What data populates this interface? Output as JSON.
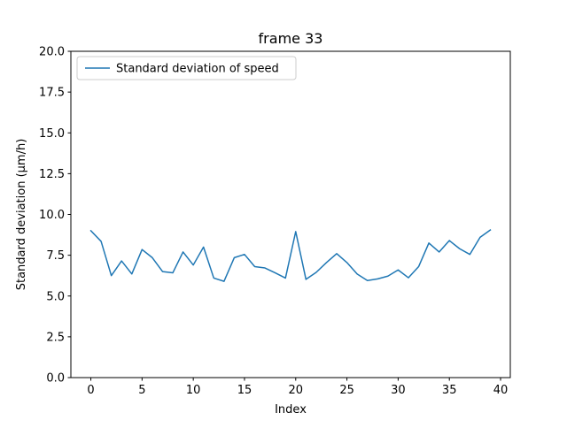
{
  "chart_data": {
    "type": "line",
    "title": "frame 33",
    "xlabel": "Index",
    "ylabel": "Standard deviation (μm/h)",
    "xlim": [
      -1.95,
      40.95
    ],
    "ylim": [
      0,
      20
    ],
    "xticks": [
      0,
      5,
      10,
      15,
      20,
      25,
      30,
      35,
      40
    ],
    "xtick_labels": [
      "0",
      "5",
      "10",
      "15",
      "20",
      "25",
      "30",
      "35",
      "40"
    ],
    "yticks": [
      0,
      2.5,
      5,
      7.5,
      10,
      12.5,
      15,
      17.5,
      20
    ],
    "ytick_labels": [
      "0.0",
      "2.5",
      "5.0",
      "7.5",
      "10.0",
      "12.5",
      "15.0",
      "17.5",
      "20.0"
    ],
    "grid": false,
    "legend_position": "upper left",
    "series": [
      {
        "name": "Standard deviation of speed",
        "color": "#1f77b4",
        "x": [
          0,
          1,
          2,
          3,
          4,
          5,
          6,
          7,
          8,
          9,
          10,
          11,
          12,
          13,
          14,
          15,
          16,
          17,
          18,
          19,
          20,
          21,
          22,
          23,
          24,
          25,
          26,
          27,
          28,
          29,
          30,
          31,
          32,
          33,
          34,
          35,
          36,
          37,
          38,
          39
        ],
        "values": [
          9.0,
          8.35,
          6.25,
          7.15,
          6.35,
          7.85,
          7.35,
          6.5,
          6.42,
          7.7,
          6.9,
          8.0,
          6.1,
          5.9,
          7.35,
          7.55,
          6.8,
          6.72,
          6.42,
          6.1,
          8.95,
          6.02,
          6.45,
          7.05,
          7.6,
          7.05,
          6.35,
          5.95,
          6.05,
          6.22,
          6.6,
          6.12,
          6.8,
          8.25,
          7.7,
          8.4,
          7.9,
          7.55,
          8.6,
          9.05
        ]
      }
    ]
  }
}
